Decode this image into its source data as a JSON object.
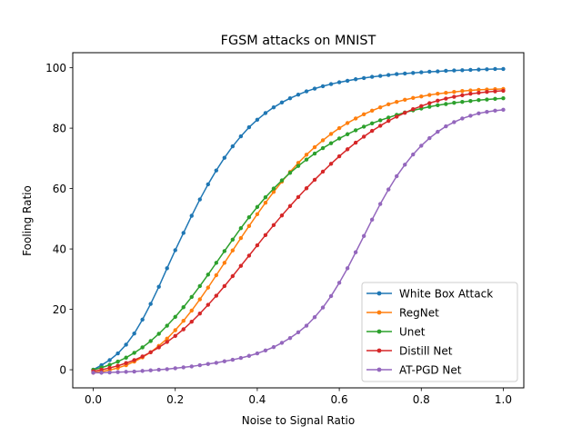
{
  "chart_data": {
    "type": "line",
    "title": "FGSM attacks on MNIST",
    "xlabel": "Noise to Signal Ratio",
    "ylabel": "Fooling Ratio",
    "xlim": [
      -0.05,
      1.05
    ],
    "ylim": [
      -6,
      105
    ],
    "xticks": [
      0.0,
      0.2,
      0.4,
      0.6,
      0.8,
      1.0
    ],
    "xtick_labels": [
      "0.0",
      "0.2",
      "0.4",
      "0.6",
      "0.8",
      "1.0"
    ],
    "yticks": [
      0,
      20,
      40,
      60,
      80,
      100
    ],
    "ytick_labels": [
      "0",
      "20",
      "40",
      "60",
      "80",
      "100"
    ],
    "grid": false,
    "legend_position": "lower-right",
    "x": [
      0.0,
      0.02,
      0.04,
      0.06,
      0.08,
      0.1,
      0.12,
      0.14,
      0.16,
      0.18,
      0.2,
      0.22,
      0.24,
      0.26,
      0.28,
      0.3,
      0.32,
      0.34,
      0.36,
      0.38,
      0.4,
      0.42,
      0.44,
      0.46,
      0.48,
      0.5,
      0.52,
      0.54,
      0.56,
      0.58,
      0.6,
      0.62,
      0.64,
      0.66,
      0.68,
      0.7,
      0.72,
      0.74,
      0.76,
      0.78,
      0.8,
      0.82,
      0.84,
      0.86,
      0.88,
      0.9,
      0.92,
      0.94,
      0.96,
      0.98,
      1.0
    ],
    "series": [
      {
        "name": "White Box Attack",
        "color": "#1f77b4",
        "values": [
          0.0,
          1.5,
          3.2,
          5.4,
          8.3,
          12.0,
          16.6,
          21.8,
          27.5,
          33.6,
          39.6,
          45.3,
          51.0,
          56.4,
          61.4,
          66.0,
          70.2,
          74.0,
          77.3,
          80.3,
          82.8,
          85.0,
          86.9,
          88.5,
          89.9,
          91.1,
          92.2,
          93.1,
          93.9,
          94.6,
          95.2,
          95.7,
          96.2,
          96.6,
          97.0,
          97.3,
          97.6,
          97.9,
          98.1,
          98.3,
          98.5,
          98.7,
          98.8,
          99.0,
          99.1,
          99.2,
          99.3,
          99.4,
          99.5,
          99.6,
          99.6
        ]
      },
      {
        "name": "RegNet",
        "color": "#ff7f0e",
        "values": [
          -1.0,
          -0.6,
          -0.1,
          0.6,
          1.5,
          2.7,
          4.1,
          5.8,
          7.9,
          10.3,
          13.1,
          16.2,
          19.6,
          23.3,
          27.2,
          31.3,
          35.4,
          39.5,
          43.6,
          47.6,
          51.5,
          55.3,
          58.9,
          62.3,
          65.5,
          68.5,
          71.2,
          73.7,
          76.0,
          78.1,
          80.0,
          81.7,
          83.2,
          84.6,
          85.8,
          86.9,
          87.9,
          88.7,
          89.4,
          90.0,
          90.5,
          91.0,
          91.4,
          91.7,
          92.0,
          92.3,
          92.5,
          92.7,
          92.8,
          92.9,
          93.0
        ]
      },
      {
        "name": "Unet",
        "color": "#2ca02c",
        "values": [
          0.0,
          0.7,
          1.6,
          2.7,
          4.0,
          5.6,
          7.4,
          9.5,
          11.9,
          14.6,
          17.5,
          20.7,
          24.1,
          27.7,
          31.5,
          35.4,
          39.3,
          43.1,
          46.9,
          50.5,
          53.9,
          57.1,
          60.0,
          62.7,
          65.2,
          67.5,
          69.6,
          71.6,
          73.4,
          75.0,
          76.6,
          78.0,
          79.3,
          80.5,
          81.6,
          82.6,
          83.5,
          84.4,
          85.2,
          85.9,
          86.5,
          87.1,
          87.6,
          88.0,
          88.4,
          88.7,
          89.0,
          89.3,
          89.5,
          89.7,
          89.9
        ]
      },
      {
        "name": "Distill Net",
        "color": "#d62728",
        "values": [
          -0.5,
          0.0,
          0.6,
          1.3,
          2.2,
          3.2,
          4.4,
          5.8,
          7.4,
          9.2,
          11.2,
          13.4,
          15.9,
          18.6,
          21.5,
          24.5,
          27.7,
          31.0,
          34.4,
          37.8,
          41.2,
          44.6,
          47.9,
          51.1,
          54.2,
          57.2,
          60.1,
          62.9,
          65.6,
          68.2,
          70.7,
          73.0,
          75.2,
          77.2,
          79.1,
          80.8,
          82.4,
          83.8,
          85.1,
          86.3,
          87.3,
          88.3,
          89.1,
          89.8,
          90.4,
          90.9,
          91.4,
          91.7,
          92.0,
          92.2,
          92.4
        ]
      },
      {
        "name": "AT-PGD Net",
        "color": "#9467bd",
        "values": [
          -1.0,
          -1.0,
          -0.9,
          -0.8,
          -0.7,
          -0.6,
          -0.4,
          -0.2,
          0.0,
          0.2,
          0.5,
          0.8,
          1.1,
          1.5,
          1.9,
          2.3,
          2.8,
          3.3,
          3.9,
          4.6,
          5.4,
          6.4,
          7.5,
          8.9,
          10.5,
          12.4,
          14.6,
          17.4,
          20.6,
          24.4,
          28.8,
          33.6,
          38.9,
          44.3,
          49.7,
          54.9,
          59.7,
          64.1,
          67.9,
          71.3,
          74.2,
          76.7,
          78.8,
          80.6,
          82.0,
          83.2,
          84.1,
          84.9,
          85.4,
          85.8,
          86.1
        ]
      }
    ]
  }
}
